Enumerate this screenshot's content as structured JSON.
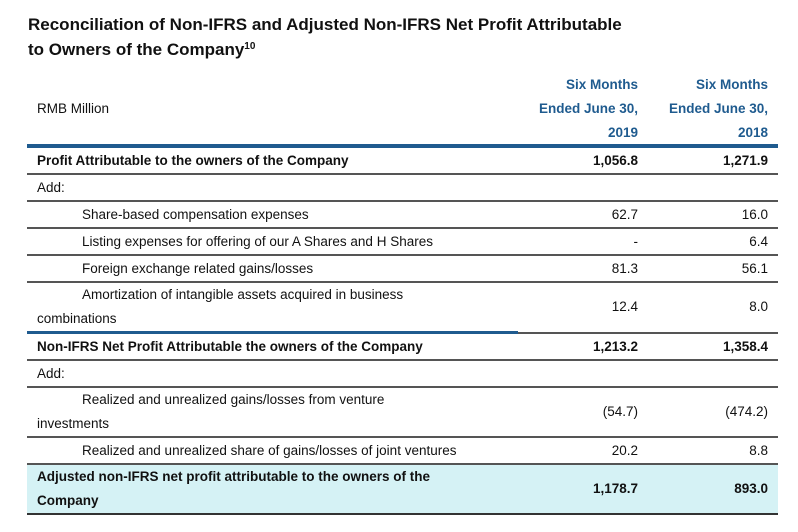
{
  "title": {
    "line1": "Reconciliation of Non-IFRS and Adjusted Non-IFRS Net Profit Attributable",
    "line2": "to Owners of the Company",
    "footnote": "10"
  },
  "table": {
    "unit_label": "RMB Million",
    "columns": [
      {
        "line1": "Six Months",
        "line2": "Ended June 30,",
        "line3": "2019"
      },
      {
        "line1": "Six Months",
        "line2": "Ended June 30,",
        "line3": "2018"
      }
    ],
    "rows": [
      {
        "label": "Profit Attributable to the owners of the Company",
        "v2019": "1,056.8",
        "v2018": "1,271.9"
      },
      {
        "label": "Add:"
      },
      {
        "label": "Share-based compensation expenses",
        "v2019": "62.7",
        "v2018": "16.0"
      },
      {
        "label": "Listing expenses for offering of our A Shares and H Shares",
        "v2019": "-",
        "v2018": "6.4"
      },
      {
        "label": "Foreign exchange related gains/losses",
        "v2019": "81.3",
        "v2018": "56.1"
      },
      {
        "label": "Amortization of intangible assets acquired in business",
        "label_cont": "combinations",
        "v2019": "12.4",
        "v2018": "8.0"
      },
      {
        "label": "Non-IFRS Net Profit Attributable the owners of the Company",
        "v2019": "1,213.2",
        "v2018": "1,358.4"
      },
      {
        "label": "Add:"
      },
      {
        "label": "Realized and unrealized gains/losses from venture",
        "label_cont": "investments",
        "v2019": "(54.7)",
        "v2018": "(474.2)"
      },
      {
        "label": "Realized and unrealized share of gains/losses of joint ventures",
        "v2019": "20.2",
        "v2018": "8.8"
      },
      {
        "label": "Adjusted non-IFRS net profit attributable to the owners of the",
        "label_cont": "Company",
        "v2019": "1,178.7",
        "v2018": "893.0"
      }
    ]
  },
  "colors": {
    "accent": "#1f5b8f",
    "highlight": "#d5f2f5"
  }
}
